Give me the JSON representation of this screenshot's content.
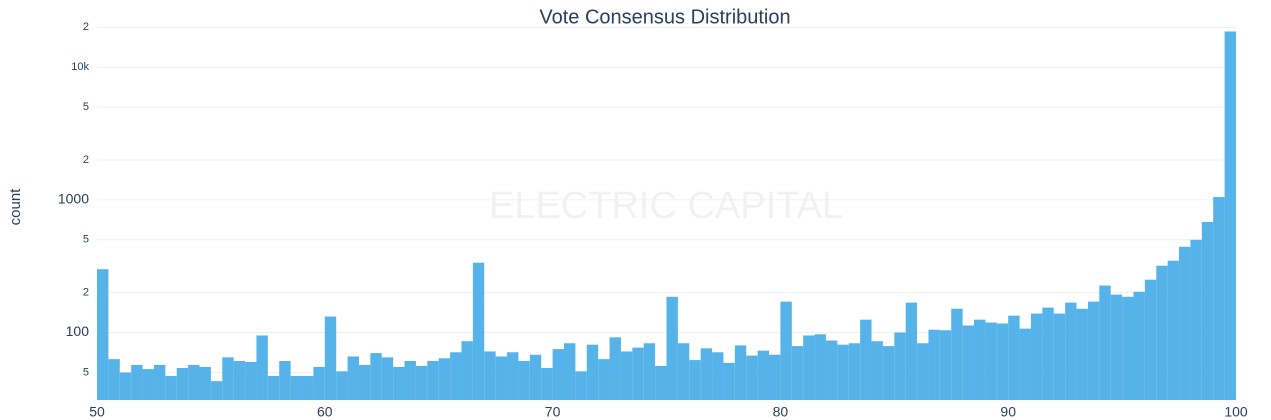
{
  "chart_data": {
    "type": "histogram",
    "title": "Vote Consensus Distribution",
    "y_label": "count",
    "watermark": "ELECTRIC CAPITAL",
    "color": "#55b3ea",
    "yscale": "log",
    "grid": true,
    "bins": [
      50,
      50.5,
      51,
      51.5,
      52,
      52.5,
      53,
      53.5,
      54,
      54.5,
      55,
      55.5,
      56,
      56.5,
      57,
      57.5,
      58,
      58.5,
      59,
      59.5,
      60,
      60.5,
      61,
      61.5,
      62,
      62.5,
      63,
      63.5,
      64,
      64.5,
      65,
      65.5,
      66,
      66.5,
      67,
      67.5,
      68,
      68.5,
      69,
      69.5,
      70,
      70.5,
      71,
      71.5,
      72,
      72.5,
      73,
      73.5,
      74,
      74.5,
      75,
      75.5,
      76,
      76.5,
      77,
      77.5,
      78,
      78.5,
      79,
      79.5,
      80,
      80.5,
      81,
      81.5,
      82,
      82.5,
      83,
      83.5,
      84,
      84.5,
      85,
      85.5,
      86,
      86.5,
      87,
      87.5,
      88,
      88.5,
      89,
      89.5,
      90,
      90.5,
      91,
      91.5,
      92,
      92.5,
      93,
      93.5,
      94,
      94.5,
      95,
      95.5,
      96,
      96.5,
      97,
      97.5,
      98,
      98.5,
      99,
      99.5,
      100
    ],
    "values": [
      300,
      63,
      50,
      57,
      53,
      57,
      47,
      54,
      57,
      55,
      43,
      65,
      61,
      60,
      95,
      47,
      61,
      47,
      47,
      55,
      132,
      51,
      66,
      57,
      70,
      65,
      55,
      61,
      56,
      61,
      64,
      71,
      86,
      336,
      72,
      66,
      71,
      61,
      68,
      54,
      75,
      83,
      51,
      81,
      63,
      92,
      72,
      77,
      83,
      56,
      186,
      83,
      62,
      76,
      71,
      59,
      80,
      67,
      73,
      68,
      171,
      79,
      95,
      97,
      87,
      81,
      83,
      125,
      86,
      79,
      100,
      168,
      83,
      105,
      104,
      151,
      113,
      125,
      119,
      117,
      134,
      107,
      139,
      154,
      139,
      168,
      151,
      171,
      226,
      193,
      186,
      203,
      250,
      319,
      348,
      443,
      500,
      682,
      1050,
      18600
    ],
    "xlim": [
      50,
      100
    ],
    "xticks": [
      50,
      60,
      70,
      80,
      90,
      100
    ],
    "ylim": [
      31,
      27000
    ],
    "yticks": [
      {
        "value": 20000,
        "label": "2"
      },
      {
        "value": 10000,
        "label": "10k"
      },
      {
        "value": 5000,
        "label": "5"
      },
      {
        "value": 2000,
        "label": "2"
      },
      1000,
      {
        "value": 500,
        "label": "5"
      },
      {
        "value": 200,
        "label": "2"
      },
      100,
      {
        "value": 50,
        "label": "5"
      }
    ]
  }
}
